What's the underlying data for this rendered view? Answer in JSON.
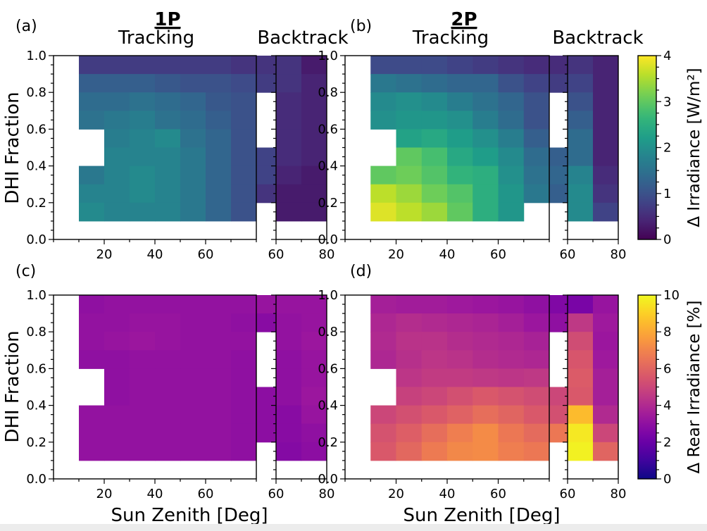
{
  "figure": {
    "group_titles": [
      "1P",
      "2P"
    ],
    "col_titles": [
      "Tracking",
      "Backtrack",
      "Tracking",
      "Backtrack"
    ],
    "panel_labels": [
      "(a)",
      "(b)",
      "(c)",
      "(d)"
    ],
    "ylabel": "DHI Fraction",
    "xlabel": "Sun Zenith [Deg]",
    "colorbar_top_label": "Δ Irradiance [W/m²]",
    "colorbar_bottom_label": "Δ Rear Irradiance [%]"
  },
  "chart_data": [
    {
      "type": "heatmap",
      "panel": "(a)",
      "group": "1P",
      "subplots": [
        {
          "name": "Tracking",
          "x_bin_start": 10,
          "x_bin_width": 10,
          "y_bin_start": 0.1,
          "y_bin_width": 0.1,
          "xlim": [
            0,
            80
          ],
          "ylim": [
            0.0,
            1.0
          ],
          "xticks": [
            20,
            40,
            60
          ],
          "yticks": [
            0.0,
            0.2,
            0.4,
            0.6,
            0.8,
            1.0
          ],
          "values_rows_top_to_bottom": [
            [
              0.7,
              0.7,
              0.7,
              0.7,
              0.7,
              0.7,
              0.6,
              0.6
            ],
            [
              1.2,
              1.2,
              1.2,
              1.1,
              1.0,
              1.0,
              0.9,
              0.7
            ],
            [
              1.4,
              1.4,
              1.5,
              1.4,
              1.3,
              1.1,
              1.0,
              null
            ],
            [
              1.5,
              1.6,
              1.7,
              1.5,
              1.4,
              1.2,
              1.0,
              null
            ],
            [
              null,
              1.7,
              1.8,
              1.9,
              1.5,
              1.3,
              1.0,
              null
            ],
            [
              null,
              1.8,
              1.8,
              1.8,
              1.6,
              1.3,
              1.0,
              0.8
            ],
            [
              1.6,
              1.8,
              1.9,
              1.8,
              1.6,
              1.3,
              1.0,
              0.8
            ],
            [
              1.8,
              1.8,
              1.9,
              1.8,
              1.6,
              1.3,
              1.0,
              0.6
            ],
            [
              1.9,
              1.8,
              1.8,
              1.8,
              1.6,
              1.3,
              1.0,
              null
            ]
          ]
        },
        {
          "name": "Backtrack",
          "x_bin_start": 60,
          "x_bin_width": 10,
          "y_bin_start": 0.1,
          "y_bin_width": 0.1,
          "xlim": [
            60,
            80
          ],
          "ylim": [
            0.0,
            1.0
          ],
          "xticks": [
            60,
            80
          ],
          "values_rows_top_to_bottom": [
            [
              0.6,
              0.3
            ],
            [
              0.6,
              0.4
            ],
            [
              0.5,
              0.4
            ],
            [
              0.5,
              0.4
            ],
            [
              0.5,
              0.4
            ],
            [
              0.5,
              0.4
            ],
            [
              0.4,
              0.3
            ],
            [
              0.3,
              0.3
            ],
            [
              0.3,
              0.3
            ]
          ]
        }
      ]
    },
    {
      "type": "heatmap",
      "panel": "(b)",
      "group": "2P",
      "subplots": [
        {
          "name": "Tracking",
          "x_bin_start": 10,
          "x_bin_width": 10,
          "y_bin_start": 0.1,
          "y_bin_width": 0.1,
          "xlim": [
            0,
            80
          ],
          "ylim": [
            0.0,
            1.0
          ],
          "xticks": [
            20,
            40,
            60
          ],
          "yticks": [
            0.0,
            0.2,
            0.4,
            0.6,
            0.8,
            1.0
          ],
          "values_rows_top_to_bottom": [
            [
              0.9,
              0.9,
              0.9,
              0.8,
              0.7,
              0.6,
              0.5,
              0.5
            ],
            [
              1.6,
              1.5,
              1.4,
              1.3,
              1.3,
              1.0,
              0.8,
              0.7
            ],
            [
              1.9,
              2.0,
              1.9,
              1.7,
              1.5,
              1.3,
              1.0,
              null
            ],
            [
              2.0,
              2.1,
              2.1,
              2.0,
              1.7,
              1.4,
              1.0,
              null
            ],
            [
              null,
              2.3,
              2.4,
              2.2,
              2.0,
              1.7,
              1.2,
              null
            ],
            [
              null,
              3.0,
              2.8,
              2.4,
              2.2,
              1.9,
              1.4,
              1.2
            ],
            [
              3.0,
              3.1,
              2.9,
              2.6,
              2.5,
              2.0,
              1.5,
              1.3
            ],
            [
              3.6,
              3.4,
              3.1,
              2.9,
              2.5,
              2.1,
              1.6,
              1.2
            ],
            [
              3.8,
              3.6,
              3.4,
              3.0,
              2.5,
              2.1,
              null,
              null
            ]
          ]
        },
        {
          "name": "Backtrack",
          "x_bin_start": 60,
          "x_bin_width": 10,
          "y_bin_start": 0.1,
          "y_bin_width": 0.1,
          "xlim": [
            60,
            80
          ],
          "ylim": [
            0.0,
            1.0
          ],
          "xticks": [
            60,
            80
          ],
          "values_rows_top_to_bottom": [
            [
              0.6,
              0.4
            ],
            [
              0.8,
              0.4
            ],
            [
              1.0,
              0.4
            ],
            [
              1.2,
              0.4
            ],
            [
              1.4,
              0.4
            ],
            [
              1.4,
              0.4
            ],
            [
              1.8,
              0.5
            ],
            [
              1.9,
              0.6
            ],
            [
              1.9,
              0.8
            ]
          ]
        }
      ]
    },
    {
      "type": "heatmap",
      "panel": "(c)",
      "group": "1P",
      "subplots": [
        {
          "name": "Tracking",
          "x_bin_start": 10,
          "x_bin_width": 10,
          "y_bin_start": 0.1,
          "y_bin_width": 0.1,
          "xlim": [
            0,
            80
          ],
          "ylim": [
            0.0,
            1.0
          ],
          "xticks": [
            20,
            40,
            60
          ],
          "yticks": [
            0.0,
            0.2,
            0.4,
            0.6,
            0.8,
            1.0
          ],
          "values_rows_top_to_bottom": [
            [
              3.0,
              3.1,
              3.1,
              3.1,
              3.1,
              3.1,
              3.1,
              3.2
            ],
            [
              3.1,
              3.1,
              3.2,
              3.2,
              3.1,
              3.1,
              3.0,
              2.8
            ],
            [
              3.1,
              3.2,
              3.3,
              3.2,
              3.1,
              3.1,
              3.1,
              null
            ],
            [
              3.0,
              3.0,
              3.1,
              3.1,
              3.1,
              3.1,
              3.0,
              null
            ],
            [
              null,
              3.0,
              3.1,
              3.1,
              3.1,
              3.1,
              3.0,
              null
            ],
            [
              null,
              3.0,
              3.1,
              3.1,
              3.1,
              3.1,
              3.0,
              2.9
            ],
            [
              3.1,
              3.1,
              3.1,
              3.1,
              3.1,
              3.1,
              3.0,
              2.9
            ],
            [
              3.1,
              3.1,
              3.1,
              3.1,
              3.1,
              3.1,
              3.0,
              2.9
            ],
            [
              3.1,
              3.1,
              3.1,
              3.1,
              3.1,
              3.1,
              3.0,
              null
            ]
          ]
        },
        {
          "name": "Backtrack",
          "x_bin_start": 60,
          "x_bin_width": 10,
          "y_bin_start": 0.1,
          "y_bin_width": 0.1,
          "xlim": [
            60,
            80
          ],
          "ylim": [
            0.0,
            1.0
          ],
          "xticks": [
            60,
            80
          ],
          "values_rows_top_to_bottom": [
            [
              3.2,
              3.2
            ],
            [
              3.1,
              3.2
            ],
            [
              3.1,
              3.3
            ],
            [
              3.0,
              3.2
            ],
            [
              3.0,
              3.2
            ],
            [
              3.0,
              3.3
            ],
            [
              2.8,
              3.2
            ],
            [
              2.8,
              3.0
            ],
            [
              2.7,
              2.9
            ]
          ]
        }
      ]
    },
    {
      "type": "heatmap",
      "panel": "(d)",
      "group": "2P",
      "subplots": [
        {
          "name": "Tracking",
          "x_bin_start": 10,
          "x_bin_width": 10,
          "y_bin_start": 0.1,
          "y_bin_width": 0.1,
          "xlim": [
            0,
            80
          ],
          "ylim": [
            0.0,
            1.0
          ],
          "xticks": [
            20,
            40,
            60
          ],
          "yticks": [
            0.0,
            0.2,
            0.4,
            0.6,
            0.8,
            1.0
          ],
          "values_rows_top_to_bottom": [
            [
              3.6,
              3.5,
              3.5,
              3.4,
              3.3,
              3.2,
              3.0,
              2.6
            ],
            [
              3.9,
              4.1,
              4.0,
              3.9,
              3.8,
              3.6,
              3.3,
              3.0
            ],
            [
              4.0,
              4.3,
              4.3,
              4.1,
              4.0,
              3.9,
              3.7,
              null
            ],
            [
              3.9,
              4.2,
              4.4,
              4.3,
              4.1,
              4.0,
              3.9,
              null
            ],
            [
              null,
              4.4,
              4.6,
              4.6,
              4.5,
              4.4,
              4.5,
              null
            ],
            [
              null,
              4.8,
              5.0,
              5.3,
              5.6,
              5.4,
              5.2,
              5.0
            ],
            [
              5.0,
              5.3,
              5.6,
              5.9,
              6.3,
              6.0,
              5.6,
              5.3
            ],
            [
              5.4,
              5.8,
              6.3,
              6.8,
              7.2,
              6.6,
              6.2,
              6.6
            ],
            [
              5.6,
              6.1,
              6.7,
              7.1,
              7.2,
              6.8,
              6.6,
              null
            ]
          ]
        },
        {
          "name": "Backtrack",
          "x_bin_start": 60,
          "x_bin_width": 10,
          "y_bin_start": 0.1,
          "y_bin_width": 0.1,
          "xlim": [
            60,
            80
          ],
          "ylim": [
            0.0,
            1.0
          ],
          "xticks": [
            60,
            80
          ],
          "values_rows_top_to_bottom": [
            [
              2.4,
              3.2
            ],
            [
              4.5,
              3.4
            ],
            [
              5.2,
              3.3
            ],
            [
              5.5,
              3.4
            ],
            [
              5.7,
              3.6
            ],
            [
              5.6,
              3.6
            ],
            [
              8.5,
              4.0
            ],
            [
              9.6,
              5.0
            ],
            [
              9.8,
              6.0
            ]
          ]
        }
      ]
    }
  ],
  "colorbars": [
    {
      "label": "Δ Irradiance [W/m²]",
      "colormap": "viridis",
      "range": [
        0,
        4
      ],
      "ticks": [
        0,
        1,
        2,
        3,
        4
      ]
    },
    {
      "label": "Δ Rear Irradiance [%]",
      "colormap": "plasma",
      "range": [
        0,
        10
      ],
      "ticks": [
        0,
        2,
        4,
        6,
        8,
        10
      ]
    }
  ]
}
